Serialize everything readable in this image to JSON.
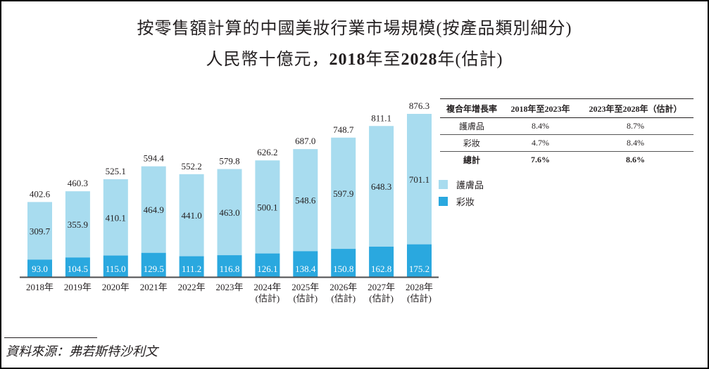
{
  "title": {
    "line1": "按零售額計算的中國美妝行業市場規模(按產品類別細分)",
    "line2_prefix": "人民幣十億元，",
    "line2_start": "2018",
    "line2_mid": "年至",
    "line2_end": "2028",
    "line2_suffix": "年(估計)"
  },
  "colors": {
    "skincare": "#a8dcef",
    "makeup": "#2aa8df",
    "axis": "#4d4d4f"
  },
  "chart_data": {
    "type": "bar",
    "stacked": true,
    "title": "按零售額計算的中國美妝行業市場規模(按產品類別細分)",
    "subtitle": "人民幣十億元，2018年至2028年(估計)",
    "categories": [
      "2018年",
      "2019年",
      "2020年",
      "2021年",
      "2022年",
      "2023年",
      "2024年",
      "2025年",
      "2026年",
      "2027年",
      "2028年"
    ],
    "category_notes": [
      "",
      "",
      "",
      "",
      "",
      "",
      "(估計)",
      "(估計)",
      "(估計)",
      "(估計)",
      "(估計)"
    ],
    "series": [
      {
        "name": "彩妝",
        "values": [
          93.0,
          104.5,
          115.0,
          129.5,
          111.2,
          116.8,
          126.1,
          138.4,
          150.8,
          162.8,
          175.2
        ]
      },
      {
        "name": "護膚品",
        "values": [
          309.7,
          355.9,
          410.1,
          464.9,
          441.0,
          463.0,
          500.1,
          548.6,
          597.9,
          648.3,
          701.1
        ]
      }
    ],
    "totals": [
      402.6,
      460.3,
      525.1,
      594.4,
      552.2,
      579.8,
      626.2,
      687.0,
      748.7,
      811.1,
      876.3
    ],
    "xlabel": "",
    "ylabel": "",
    "ylim": [
      0,
      876.3
    ],
    "grid": false,
    "legend": [
      "護膚品",
      "彩妝"
    ],
    "legend_position": "right"
  },
  "cagr_table": {
    "headers": [
      "複合年增長率",
      "2018年至2023年",
      "2023年至2028年（估計）"
    ],
    "rows": [
      [
        "護膚品",
        "8.4%",
        "8.7%"
      ],
      [
        "彩妝",
        "4.7%",
        "8.4%"
      ],
      [
        "總計",
        "7.6%",
        "8.6%"
      ]
    ]
  },
  "source": "資料來源：弗若斯特沙利文"
}
